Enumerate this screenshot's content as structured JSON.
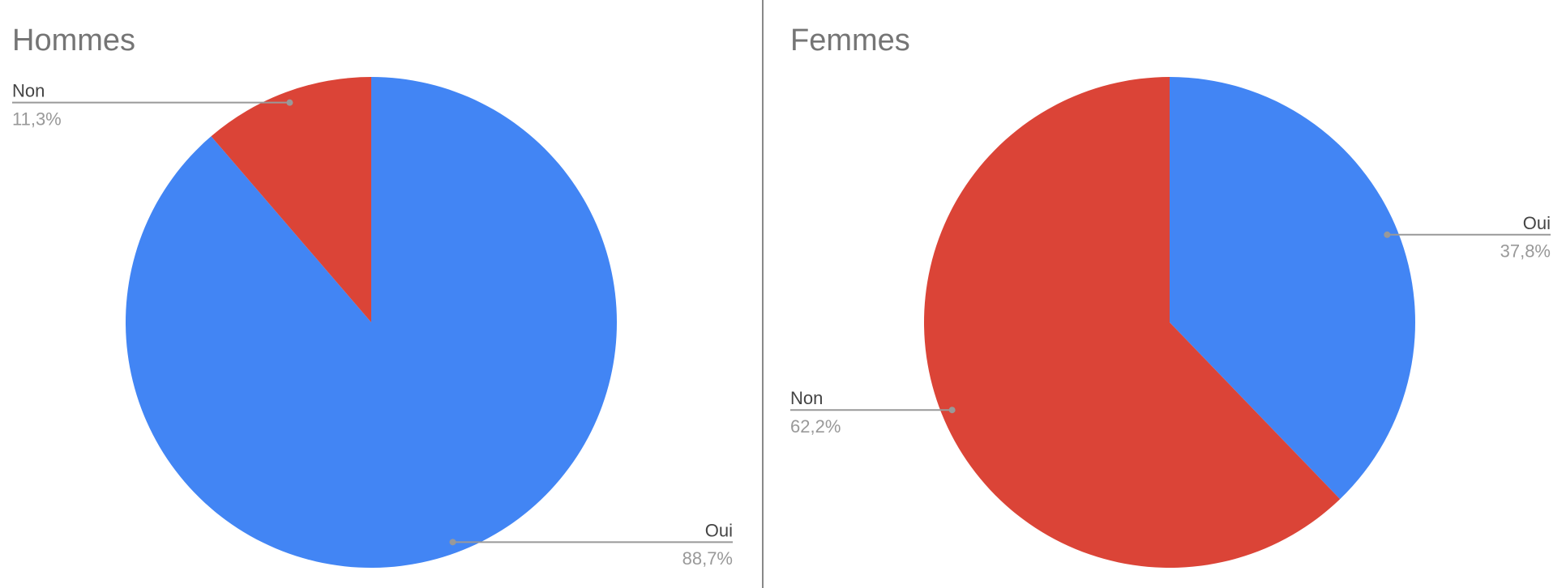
{
  "chart_data": [
    {
      "type": "pie",
      "title": "Hommes",
      "categories": [
        "Oui",
        "Non"
      ],
      "values": [
        88.7,
        11.3
      ],
      "value_labels": [
        "88,7%",
        "11,3%"
      ],
      "colors": [
        "#4285f4",
        "#db4437"
      ]
    },
    {
      "type": "pie",
      "title": "Femmes",
      "categories": [
        "Oui",
        "Non"
      ],
      "values": [
        37.8,
        62.2
      ],
      "value_labels": [
        "37,8%",
        "62,2%"
      ],
      "colors": [
        "#4285f4",
        "#db4437"
      ]
    }
  ]
}
